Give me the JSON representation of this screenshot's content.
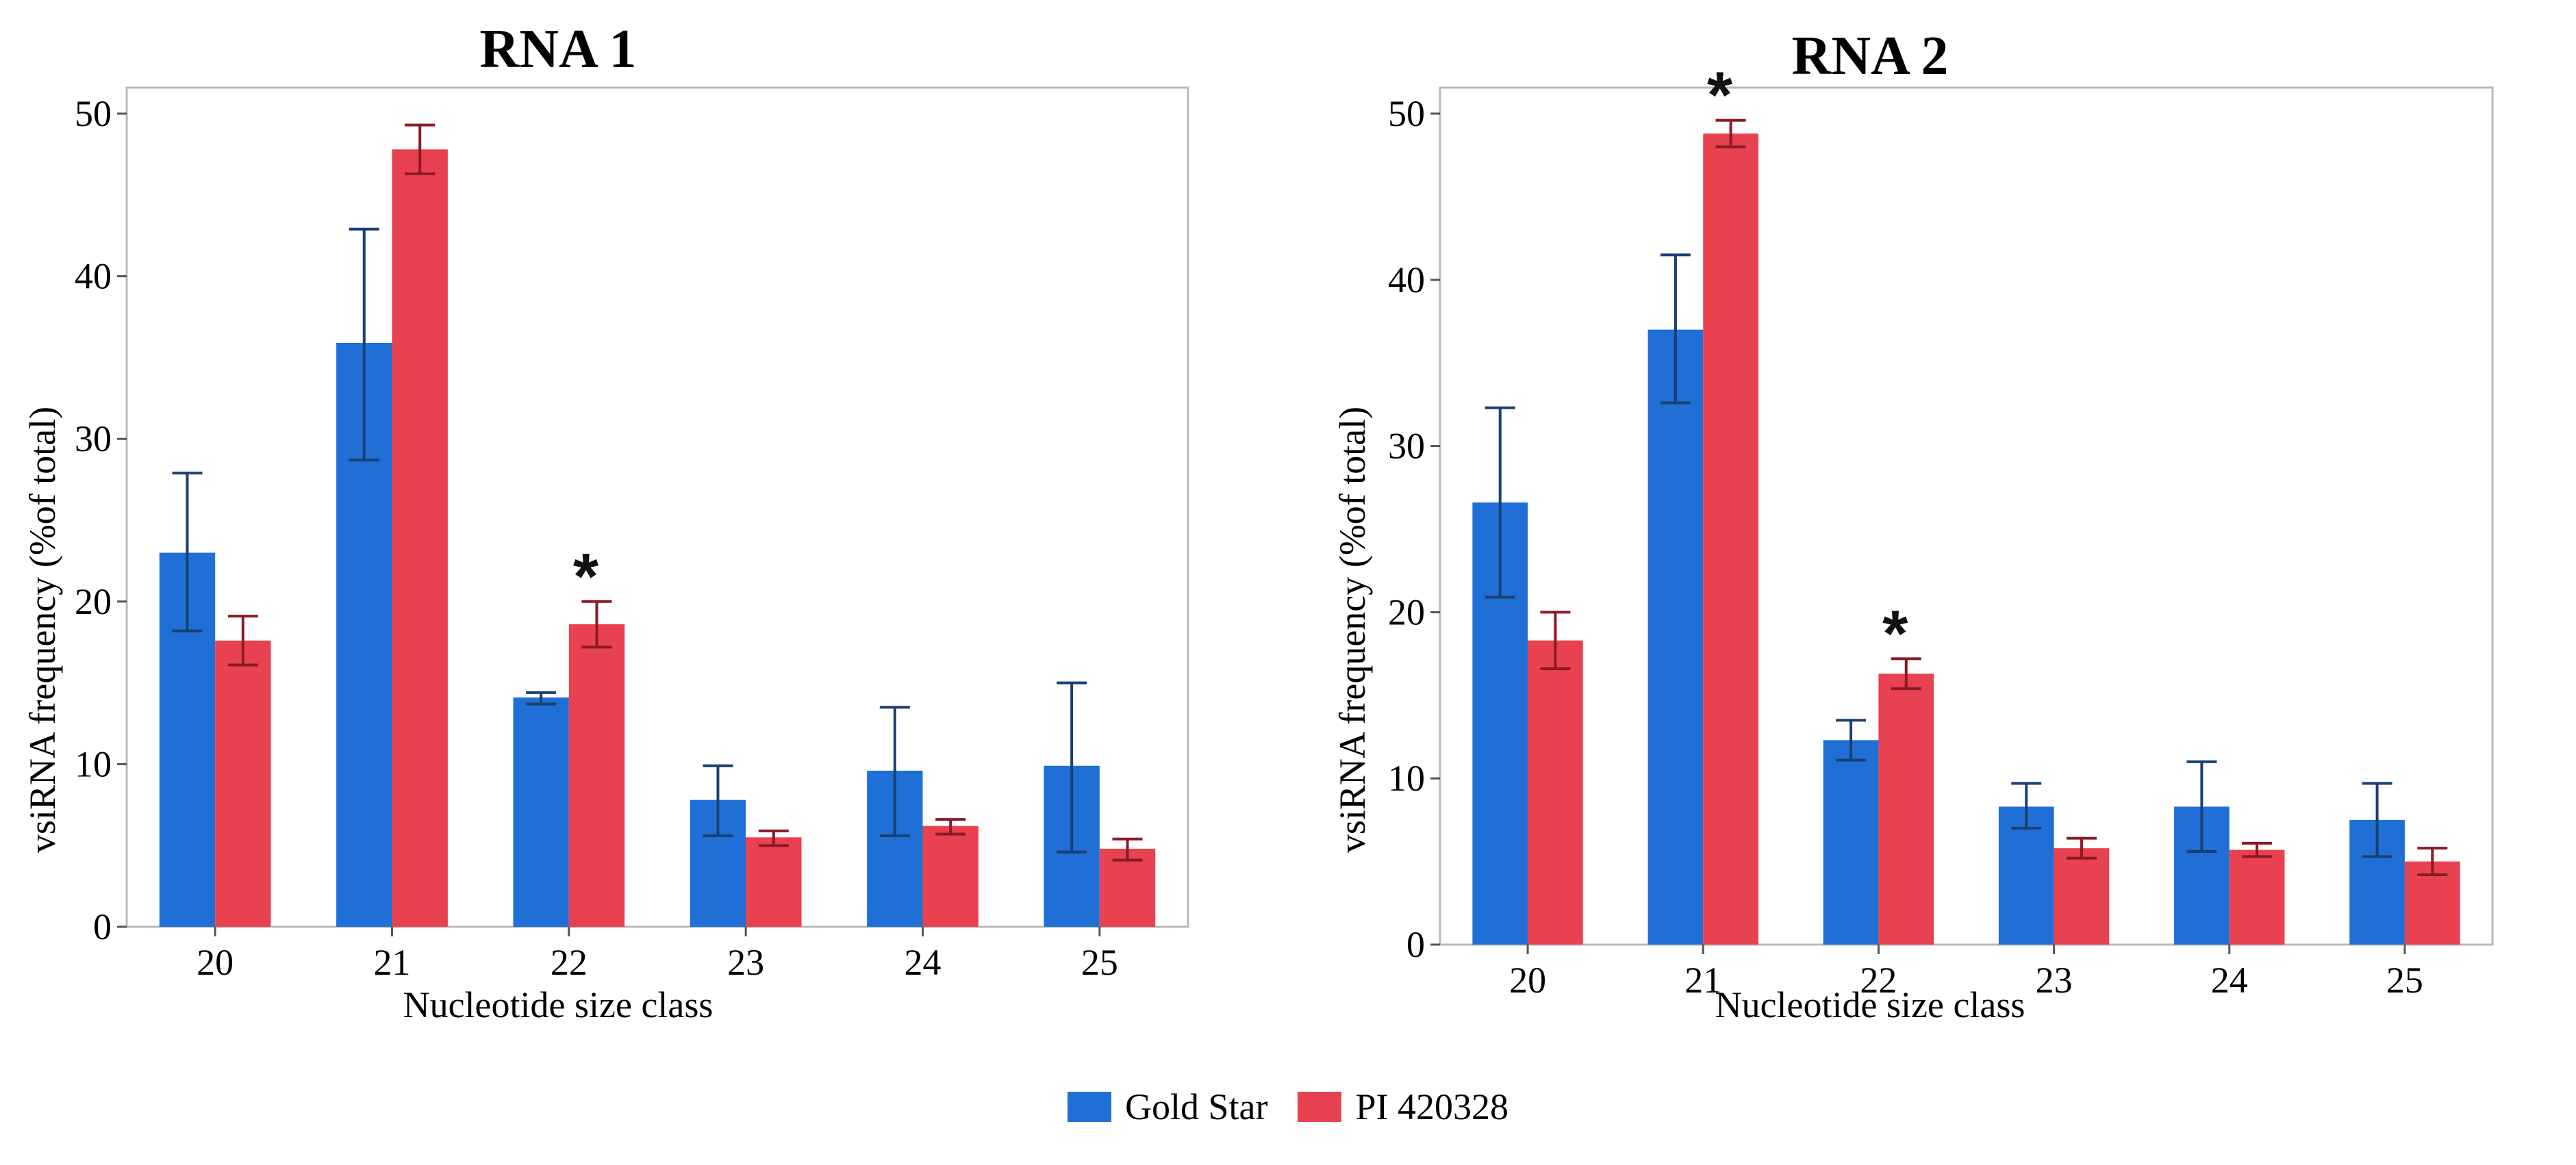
{
  "colors": {
    "gold_star": "#1f6fd6",
    "pi_420328": "#e8414f",
    "gold_star_error": "#1a3f70",
    "pi_420328_error": "#8a1a26"
  },
  "legend": {
    "gold_star": "Gold Star",
    "pi_420328": "PI 420328"
  },
  "chart_data": [
    {
      "type": "bar",
      "title": "RNA 1",
      "xlabel": "Nucleotide size class",
      "ylabel": "vsiRNA frequency (%of total)",
      "ylim": [
        0,
        50
      ],
      "yticks": [
        0,
        10,
        20,
        30,
        40,
        50
      ],
      "categories": [
        "20",
        "21",
        "22",
        "23",
        "24",
        "25"
      ],
      "series": [
        {
          "name": "Gold Star",
          "values": [
            23.0,
            35.9,
            14.1,
            7.8,
            9.6,
            9.9
          ],
          "error_low": [
            18.2,
            28.7,
            13.7,
            5.6,
            5.6,
            4.6
          ],
          "error_high": [
            27.9,
            42.9,
            14.4,
            9.9,
            13.5,
            15.0
          ]
        },
        {
          "name": "PI 420328",
          "values": [
            17.6,
            47.8,
            18.6,
            5.5,
            6.2,
            4.8
          ],
          "error_low": [
            16.1,
            46.3,
            17.2,
            5.0,
            5.7,
            4.1
          ],
          "error_high": [
            19.1,
            49.3,
            20.0,
            5.9,
            6.6,
            5.4
          ]
        }
      ],
      "annotations": [
        {
          "text": "*",
          "category": "22",
          "series": "PI 420328"
        }
      ]
    },
    {
      "type": "bar",
      "title": "RNA 2",
      "xlabel": "Nucleotide size class",
      "ylabel": "vsiRNA frequency (%of total)",
      "ylim": [
        0,
        50
      ],
      "yticks": [
        0,
        10,
        20,
        30,
        40,
        50
      ],
      "categories": [
        "20",
        "21",
        "22",
        "23",
        "24",
        "25"
      ],
      "series": [
        {
          "name": "Gold Star",
          "values": [
            26.6,
            37.0,
            12.3,
            8.3,
            8.3,
            7.5
          ],
          "error_low": [
            20.9,
            32.6,
            11.1,
            7.0,
            5.6,
            5.3
          ],
          "error_high": [
            32.3,
            41.5,
            13.5,
            9.7,
            11.0,
            9.7
          ]
        },
        {
          "name": "PI 420328",
          "values": [
            18.3,
            48.8,
            16.3,
            5.8,
            5.7,
            5.0
          ],
          "error_low": [
            16.6,
            48.0,
            15.4,
            5.2,
            5.3,
            4.2
          ],
          "error_high": [
            20.0,
            49.6,
            17.2,
            6.4,
            6.1,
            5.8
          ]
        }
      ],
      "annotations": [
        {
          "text": "*",
          "category": "21",
          "series": "PI 420328"
        },
        {
          "text": "*",
          "category": "22",
          "series": "PI 420328"
        }
      ]
    }
  ]
}
